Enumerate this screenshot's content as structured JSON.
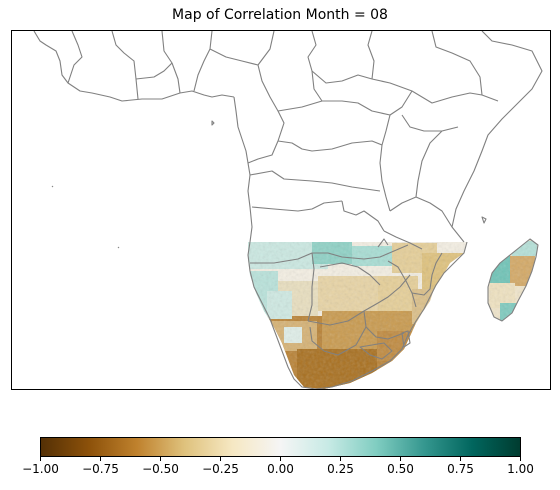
{
  "title": "Map of Correlation Month = 08",
  "colorbar": {
    "min": -1.0,
    "max": 1.0,
    "ticks": [
      "−1.00",
      "−0.75",
      "−0.50",
      "−0.25",
      "0.00",
      "0.25",
      "0.50",
      "0.75",
      "1.00"
    ],
    "colors": [
      "#543005",
      "#8c510a",
      "#bf812d",
      "#dfc27d",
      "#f6e8c3",
      "#f5f5f5",
      "#c7eae5",
      "#80cdc1",
      "#35978f",
      "#01665e",
      "#003c30"
    ]
  },
  "map": {
    "border_color": "#808080",
    "field_colors": {
      "negative_strong": "#a9701f",
      "negative_mid": "#c99a4e",
      "negative_light": "#e6cf98",
      "neutral": "#f4efe3",
      "positive_light": "#cbe9e2",
      "positive_mid": "#7fcbbf"
    }
  }
}
